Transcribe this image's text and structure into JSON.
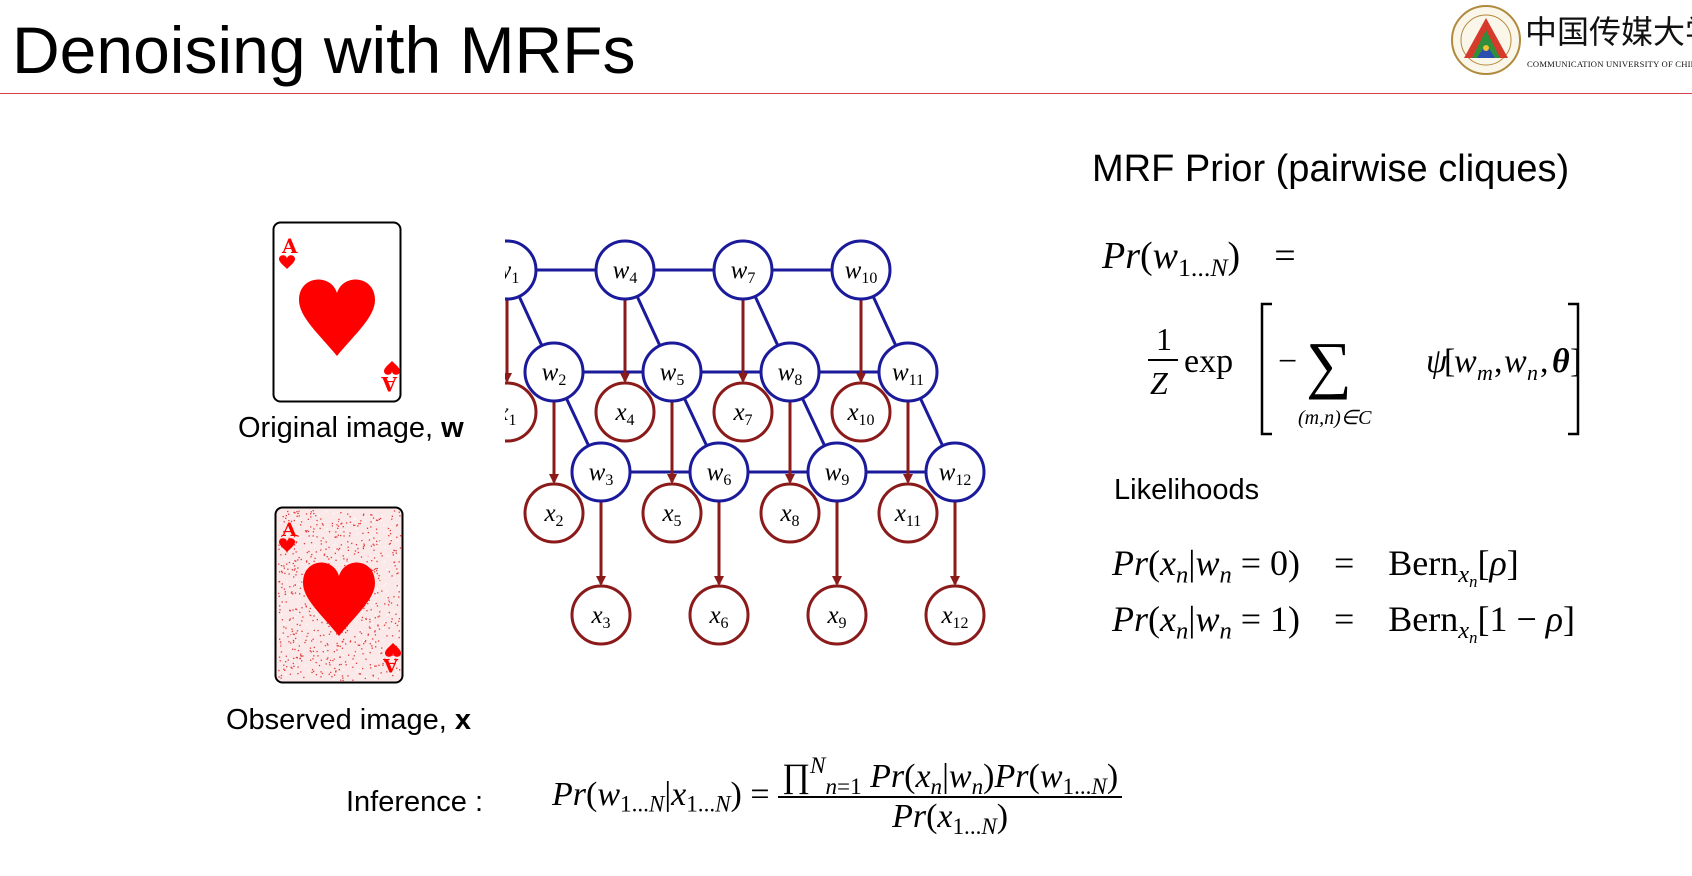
{
  "slide": {
    "title": "Denoising with MRFs",
    "rule_color": "#d8404c"
  },
  "logo": {
    "chinese_text": "中国传媒大学",
    "english_text": "COMMUNICATION UNIVERSITY OF CHINA",
    "emblem": "university-seal"
  },
  "left_panel": {
    "original_caption_text": "Original image, ",
    "original_caption_var": "w",
    "observed_caption_text": "Observed image, ",
    "observed_caption_var": "x",
    "card_rank": "A",
    "card_suit_color": "#ff0000"
  },
  "graph": {
    "hidden_color": "#1a1a9a",
    "observed_color": "#8b1a1a",
    "hidden_nodes": [
      {
        "sym": "w",
        "sub": "1"
      },
      {
        "sym": "w",
        "sub": "2"
      },
      {
        "sym": "w",
        "sub": "3"
      },
      {
        "sym": "w",
        "sub": "4"
      },
      {
        "sym": "w",
        "sub": "5"
      },
      {
        "sym": "w",
        "sub": "6"
      },
      {
        "sym": "w",
        "sub": "7"
      },
      {
        "sym": "w",
        "sub": "8"
      },
      {
        "sym": "w",
        "sub": "9"
      },
      {
        "sym": "w",
        "sub": "10"
      },
      {
        "sym": "w",
        "sub": "11"
      },
      {
        "sym": "w",
        "sub": "12"
      }
    ],
    "observed_nodes": [
      {
        "sym": "x",
        "sub": "1"
      },
      {
        "sym": "x",
        "sub": "2"
      },
      {
        "sym": "x",
        "sub": "3"
      },
      {
        "sym": "x",
        "sub": "4"
      },
      {
        "sym": "x",
        "sub": "5"
      },
      {
        "sym": "x",
        "sub": "6"
      },
      {
        "sym": "x",
        "sub": "7"
      },
      {
        "sym": "x",
        "sub": "8"
      },
      {
        "sym": "x",
        "sub": "9"
      },
      {
        "sym": "x",
        "sub": "10"
      },
      {
        "sym": "x",
        "sub": "11"
      },
      {
        "sym": "x",
        "sub": "12"
      }
    ]
  },
  "right_panel": {
    "prior_heading": "MRF Prior (pairwise cliques)",
    "likelihood_heading": "Likelihoods"
  },
  "inference": {
    "label": "Inference :"
  }
}
